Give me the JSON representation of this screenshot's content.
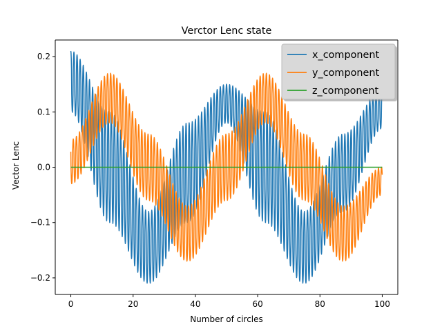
{
  "chart_data": {
    "type": "line",
    "title": "Verctor Lenc state",
    "xlabel": "Number of circles",
    "ylabel": "Vector Lenc",
    "xlim": [
      -5,
      105
    ],
    "ylim": [
      -0.23,
      0.23
    ],
    "xticks": [
      0,
      20,
      40,
      60,
      80,
      100
    ],
    "xtick_labels": [
      "0",
      "20",
      "40",
      "60",
      "80",
      "100"
    ],
    "yticks": [
      -0.2,
      -0.1,
      0.0,
      0.1,
      0.2
    ],
    "ytick_labels": [
      "−0.2",
      "−0.1",
      "0.0",
      "0.1",
      "0.2"
    ],
    "legend_placement": "upper right",
    "grid": false,
    "series": [
      {
        "name": "x_component",
        "color": "#1f77b4",
        "description_period_circles": 50,
        "envelope": {
          "x": [
            0,
            12.5,
            25,
            37.5,
            50,
            62.5,
            75,
            87.5,
            100
          ],
          "center": [
            0.12,
            0.0,
            -0.12,
            0.0,
            0.12,
            0.0,
            -0.12,
            0.0,
            0.12
          ],
          "upper": [
            0.21,
            0.1,
            -0.08,
            0.08,
            0.15,
            0.1,
            -0.08,
            0.06,
            0.14
          ],
          "lower": [
            0.1,
            -0.1,
            -0.21,
            -0.1,
            0.08,
            -0.1,
            -0.21,
            -0.08,
            0.07
          ]
        }
      },
      {
        "name": "y_component",
        "color": "#ff7f0e",
        "envelope": {
          "x": [
            0,
            12.5,
            25,
            37.5,
            50,
            62.5,
            75,
            87.5,
            100
          ],
          "center": [
            0.0,
            0.12,
            0.0,
            -0.12,
            0.0,
            0.12,
            0.0,
            -0.12,
            -0.02
          ],
          "upper": [
            0.05,
            0.17,
            0.06,
            -0.07,
            0.06,
            0.17,
            0.06,
            -0.07,
            0.0
          ],
          "lower": [
            -0.03,
            0.08,
            -0.06,
            -0.17,
            -0.06,
            0.08,
            -0.06,
            -0.17,
            -0.05
          ]
        }
      },
      {
        "name": "z_component",
        "color": "#2ca02c",
        "x": [
          0,
          100
        ],
        "values": [
          0.0,
          0.0
        ]
      }
    ]
  }
}
